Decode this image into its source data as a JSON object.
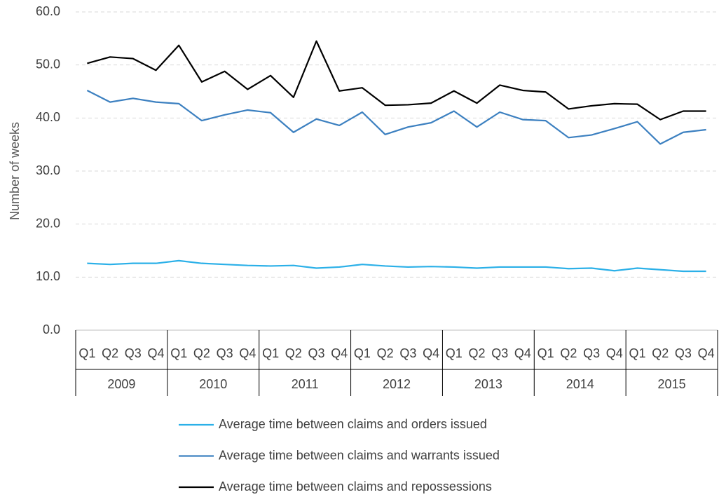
{
  "chart_data": {
    "type": "line",
    "y_axis_label": "Number of weeks",
    "categories": [
      "Q1",
      "Q2",
      "Q3",
      "Q4",
      "Q1",
      "Q2",
      "Q3",
      "Q4",
      "Q1",
      "Q2",
      "Q3",
      "Q4",
      "Q1",
      "Q2",
      "Q3",
      "Q4",
      "Q1",
      "Q2",
      "Q3",
      "Q4",
      "Q1",
      "Q2",
      "Q3",
      "Q4",
      "Q1",
      "Q2",
      "Q3",
      "Q4"
    ],
    "years": [
      "2009",
      "2010",
      "2011",
      "2012",
      "2013",
      "2014",
      "2015"
    ],
    "series": [
      {
        "name": "Average time between claims and orders issued",
        "color": "#2bb0e8",
        "values": [
          12.6,
          12.4,
          12.6,
          12.6,
          13.1,
          12.6,
          12.4,
          12.2,
          12.1,
          12.2,
          11.7,
          11.9,
          12.4,
          12.1,
          11.9,
          12.0,
          11.9,
          11.7,
          11.9,
          11.9,
          11.9,
          11.6,
          11.7,
          11.2,
          11.7,
          11.4,
          11.1,
          11.1
        ]
      },
      {
        "name": "Average time between claims and warrants issued",
        "color": "#3c80c0",
        "values": [
          45.2,
          43.0,
          43.7,
          43.0,
          42.7,
          39.5,
          40.6,
          41.5,
          41.0,
          37.3,
          39.8,
          38.6,
          41.1,
          36.9,
          38.3,
          39.1,
          41.3,
          38.3,
          41.1,
          39.7,
          39.5,
          36.3,
          36.8,
          38.0,
          39.3,
          35.1,
          37.3,
          37.8
        ]
      },
      {
        "name": "Average time between claims and repossessions",
        "color": "#000000",
        "values": [
          50.3,
          51.5,
          51.2,
          49.0,
          53.7,
          46.8,
          48.8,
          45.4,
          48.0,
          43.9,
          54.5,
          45.1,
          45.7,
          42.4,
          42.5,
          42.8,
          45.1,
          42.8,
          46.2,
          45.2,
          44.9,
          41.7,
          42.3,
          42.7,
          42.6,
          39.7,
          41.3,
          41.3
        ]
      }
    ],
    "ylim": [
      0,
      60
    ],
    "yticks": [
      {
        "value": 0,
        "label": "0.0"
      },
      {
        "value": 10,
        "label": "10.0"
      },
      {
        "value": 20,
        "label": "20.0"
      },
      {
        "value": 30,
        "label": "30.0"
      },
      {
        "value": 40,
        "label": "40.0"
      },
      {
        "value": 50,
        "label": "50.0"
      },
      {
        "value": 60,
        "label": "60.0"
      }
    ],
    "grid": true
  }
}
